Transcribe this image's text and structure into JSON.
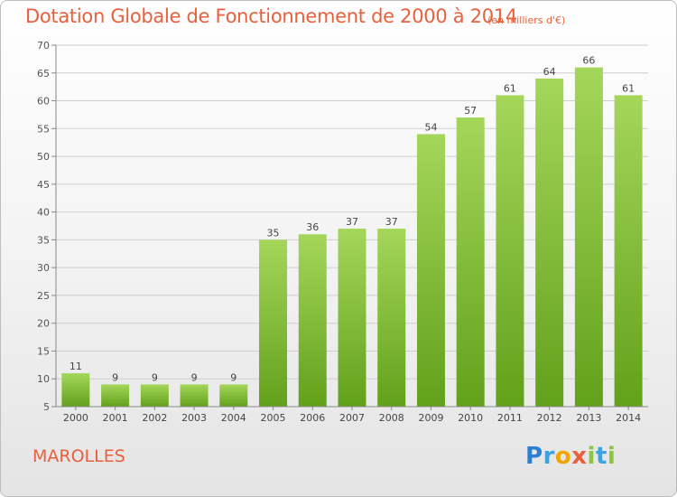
{
  "title": "Dotation Globale de Fonctionnement de 2000 à 2014",
  "subtitle": "(en milliers d'€)",
  "commune": "MAROLLES",
  "logo": {
    "letters": [
      {
        "char": "P",
        "color": "#2a7fd4"
      },
      {
        "char": "r",
        "color": "#3aa3e0"
      },
      {
        "char": "o",
        "color": "#f0a500"
      },
      {
        "char": "x",
        "color": "#e8603c"
      },
      {
        "char": "i",
        "color": "#8cc63f"
      },
      {
        "char": "t",
        "color": "#3aa3e0"
      },
      {
        "char": "i",
        "color": "#8cc63f"
      }
    ]
  },
  "colors": {
    "bar_top": "#a4d65a",
    "bar_bottom": "#62a11a",
    "accent": "#e8603c",
    "grid": "#cfcfcf"
  },
  "chart_data": {
    "type": "bar",
    "title": "Dotation Globale de Fonctionnement de 2000 à 2014",
    "unit": "(en milliers d'€)",
    "xlabel": "",
    "ylabel": "",
    "ylim": [
      5,
      70
    ],
    "yticks": [
      5,
      10,
      15,
      20,
      25,
      30,
      35,
      40,
      45,
      50,
      55,
      60,
      65,
      70
    ],
    "grid": true,
    "categories": [
      "2000",
      "2001",
      "2002",
      "2003",
      "2004",
      "2005",
      "2006",
      "2007",
      "2008",
      "2009",
      "2010",
      "2011",
      "2012",
      "2013",
      "2014"
    ],
    "values": [
      11,
      9,
      9,
      9,
      9,
      35,
      36,
      37,
      37,
      54,
      57,
      61,
      64,
      66,
      61
    ]
  }
}
